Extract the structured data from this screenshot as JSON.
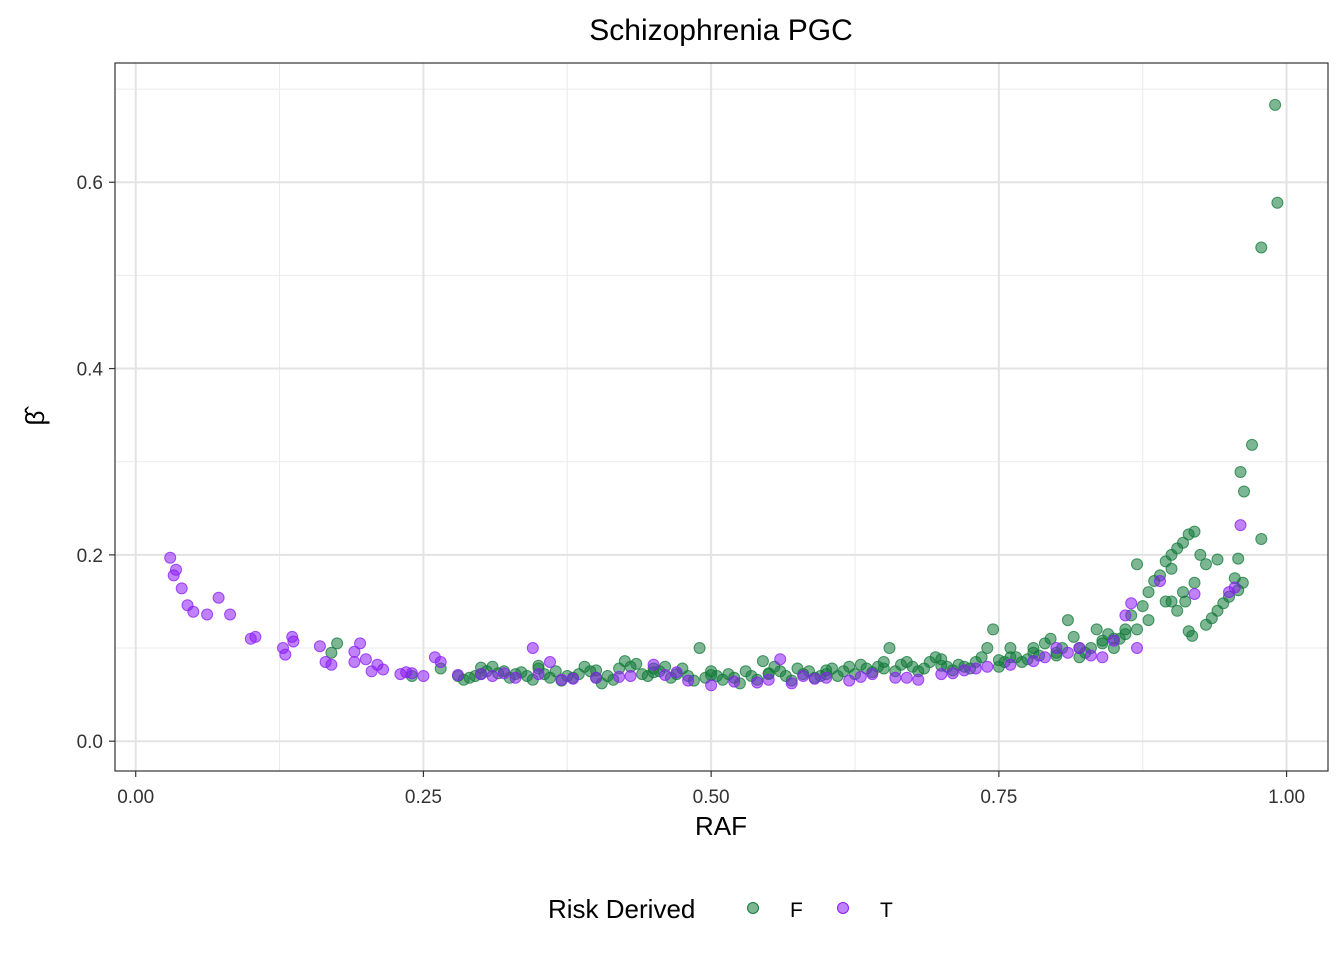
{
  "chart_data": {
    "type": "scatter",
    "title": "Schizophrenia PGC",
    "xlabel": "RAF",
    "ylabel": "β̂",
    "xlim": [
      -0.018,
      1.036
    ],
    "ylim": [
      -0.032,
      0.728
    ],
    "x_ticks": [
      0,
      0.25,
      0.5,
      0.75,
      1
    ],
    "x_tick_labels": [
      "0.00",
      "0.25",
      "0.50",
      "0.75",
      "1.00"
    ],
    "y_ticks": [
      0,
      0.2,
      0.4,
      0.6
    ],
    "y_tick_labels": [
      "0.0",
      "0.2",
      "0.4",
      "0.6"
    ],
    "grid": true,
    "legend": {
      "title": "Risk Derived",
      "position": "bottom",
      "entries": [
        {
          "label": "F",
          "color": "#137a3a"
        },
        {
          "label": "T",
          "color": "#8a1cf5"
        }
      ]
    },
    "series": [
      {
        "name": "F",
        "color": "#137a3a",
        "points": [
          [
            0.99,
            0.683
          ],
          [
            0.992,
            0.578
          ],
          [
            0.978,
            0.53
          ],
          [
            0.97,
            0.318
          ],
          [
            0.96,
            0.289
          ],
          [
            0.963,
            0.268
          ],
          [
            0.978,
            0.217
          ],
          [
            0.958,
            0.196
          ],
          [
            0.962,
            0.17
          ],
          [
            0.955,
            0.175
          ],
          [
            0.958,
            0.162
          ],
          [
            0.95,
            0.155
          ],
          [
            0.945,
            0.148
          ],
          [
            0.94,
            0.14
          ],
          [
            0.935,
            0.132
          ],
          [
            0.93,
            0.125
          ],
          [
            0.925,
            0.2
          ],
          [
            0.92,
            0.225
          ],
          [
            0.915,
            0.222
          ],
          [
            0.91,
            0.213
          ],
          [
            0.905,
            0.207
          ],
          [
            0.9,
            0.2
          ],
          [
            0.895,
            0.193
          ],
          [
            0.89,
            0.178
          ],
          [
            0.885,
            0.172
          ],
          [
            0.9,
            0.185
          ],
          [
            0.91,
            0.16
          ],
          [
            0.92,
            0.17
          ],
          [
            0.93,
            0.19
          ],
          [
            0.94,
            0.195
          ],
          [
            0.912,
            0.15
          ],
          [
            0.915,
            0.118
          ],
          [
            0.918,
            0.113
          ],
          [
            0.905,
            0.14
          ],
          [
            0.895,
            0.15
          ],
          [
            0.88,
            0.16
          ],
          [
            0.875,
            0.145
          ],
          [
            0.87,
            0.19
          ],
          [
            0.865,
            0.135
          ],
          [
            0.86,
            0.12
          ],
          [
            0.855,
            0.11
          ],
          [
            0.85,
            0.1
          ],
          [
            0.845,
            0.115
          ],
          [
            0.84,
            0.105
          ],
          [
            0.835,
            0.12
          ],
          [
            0.83,
            0.1
          ],
          [
            0.825,
            0.095
          ],
          [
            0.82,
            0.09
          ],
          [
            0.815,
            0.112
          ],
          [
            0.81,
            0.13
          ],
          [
            0.805,
            0.1
          ],
          [
            0.8,
            0.095
          ],
          [
            0.795,
            0.11
          ],
          [
            0.79,
            0.105
          ],
          [
            0.785,
            0.092
          ],
          [
            0.78,
            0.1
          ],
          [
            0.775,
            0.088
          ],
          [
            0.77,
            0.085
          ],
          [
            0.765,
            0.09
          ],
          [
            0.76,
            0.1
          ],
          [
            0.755,
            0.085
          ],
          [
            0.75,
            0.08
          ],
          [
            0.745,
            0.12
          ],
          [
            0.74,
            0.1
          ],
          [
            0.735,
            0.09
          ],
          [
            0.73,
            0.085
          ],
          [
            0.725,
            0.078
          ],
          [
            0.72,
            0.08
          ],
          [
            0.715,
            0.082
          ],
          [
            0.71,
            0.076
          ],
          [
            0.705,
            0.08
          ],
          [
            0.7,
            0.088
          ],
          [
            0.695,
            0.09
          ],
          [
            0.69,
            0.085
          ],
          [
            0.685,
            0.078
          ],
          [
            0.68,
            0.075
          ],
          [
            0.675,
            0.08
          ],
          [
            0.67,
            0.085
          ],
          [
            0.665,
            0.082
          ],
          [
            0.66,
            0.075
          ],
          [
            0.655,
            0.1
          ],
          [
            0.65,
            0.085
          ],
          [
            0.645,
            0.08
          ],
          [
            0.64,
            0.074
          ],
          [
            0.635,
            0.078
          ],
          [
            0.63,
            0.082
          ],
          [
            0.625,
            0.072
          ],
          [
            0.62,
            0.08
          ],
          [
            0.615,
            0.075
          ],
          [
            0.61,
            0.07
          ],
          [
            0.605,
            0.078
          ],
          [
            0.6,
            0.072
          ],
          [
            0.595,
            0.07
          ],
          [
            0.59,
            0.068
          ],
          [
            0.585,
            0.075
          ],
          [
            0.58,
            0.072
          ],
          [
            0.575,
            0.078
          ],
          [
            0.57,
            0.065
          ],
          [
            0.565,
            0.07
          ],
          [
            0.56,
            0.075
          ],
          [
            0.555,
            0.08
          ],
          [
            0.55,
            0.072
          ],
          [
            0.545,
            0.086
          ],
          [
            0.54,
            0.066
          ],
          [
            0.535,
            0.07
          ],
          [
            0.53,
            0.075
          ],
          [
            0.525,
            0.062
          ],
          [
            0.52,
            0.068
          ],
          [
            0.515,
            0.072
          ],
          [
            0.51,
            0.066
          ],
          [
            0.505,
            0.07
          ],
          [
            0.5,
            0.075
          ],
          [
            0.495,
            0.068
          ],
          [
            0.49,
            0.1
          ],
          [
            0.485,
            0.065
          ],
          [
            0.48,
            0.07
          ],
          [
            0.475,
            0.078
          ],
          [
            0.47,
            0.072
          ],
          [
            0.465,
            0.068
          ],
          [
            0.46,
            0.08
          ],
          [
            0.455,
            0.075
          ],
          [
            0.45,
            0.078
          ],
          [
            0.445,
            0.07
          ],
          [
            0.44,
            0.072
          ],
          [
            0.435,
            0.083
          ],
          [
            0.43,
            0.08
          ],
          [
            0.425,
            0.086
          ],
          [
            0.42,
            0.078
          ],
          [
            0.415,
            0.066
          ],
          [
            0.41,
            0.07
          ],
          [
            0.405,
            0.062
          ],
          [
            0.4,
            0.068
          ],
          [
            0.395,
            0.075
          ],
          [
            0.39,
            0.08
          ],
          [
            0.385,
            0.072
          ],
          [
            0.38,
            0.068
          ],
          [
            0.375,
            0.07
          ],
          [
            0.37,
            0.065
          ],
          [
            0.365,
            0.075
          ],
          [
            0.36,
            0.068
          ],
          [
            0.355,
            0.072
          ],
          [
            0.35,
            0.078
          ],
          [
            0.345,
            0.066
          ],
          [
            0.34,
            0.07
          ],
          [
            0.335,
            0.074
          ],
          [
            0.33,
            0.072
          ],
          [
            0.325,
            0.068
          ],
          [
            0.32,
            0.075
          ],
          [
            0.315,
            0.073
          ],
          [
            0.31,
            0.08
          ],
          [
            0.305,
            0.075
          ],
          [
            0.3,
            0.072
          ],
          [
            0.295,
            0.07
          ],
          [
            0.29,
            0.068
          ],
          [
            0.285,
            0.066
          ],
          [
            0.28,
            0.07
          ],
          [
            0.265,
            0.078
          ],
          [
            0.24,
            0.07
          ],
          [
            0.175,
            0.105
          ],
          [
            0.17,
            0.095
          ],
          [
            0.3,
            0.079
          ],
          [
            0.35,
            0.081
          ],
          [
            0.4,
            0.076
          ],
          [
            0.45,
            0.074
          ],
          [
            0.5,
            0.071
          ],
          [
            0.55,
            0.073
          ],
          [
            0.6,
            0.076
          ],
          [
            0.65,
            0.078
          ],
          [
            0.7,
            0.081
          ],
          [
            0.75,
            0.087
          ],
          [
            0.8,
            0.092
          ],
          [
            0.85,
            0.11
          ],
          [
            0.88,
            0.13
          ],
          [
            0.9,
            0.15
          ],
          [
            0.76,
            0.09
          ],
          [
            0.78,
            0.095
          ],
          [
            0.82,
            0.1
          ],
          [
            0.84,
            0.108
          ],
          [
            0.86,
            0.115
          ],
          [
            0.87,
            0.12
          ]
        ]
      },
      {
        "name": "T",
        "color": "#8a1cf5",
        "points": [
          [
            0.03,
            0.197
          ],
          [
            0.033,
            0.178
          ],
          [
            0.035,
            0.184
          ],
          [
            0.04,
            0.164
          ],
          [
            0.045,
            0.146
          ],
          [
            0.05,
            0.139
          ],
          [
            0.062,
            0.136
          ],
          [
            0.072,
            0.154
          ],
          [
            0.082,
            0.136
          ],
          [
            0.1,
            0.11
          ],
          [
            0.104,
            0.112
          ],
          [
            0.128,
            0.1
          ],
          [
            0.13,
            0.093
          ],
          [
            0.136,
            0.112
          ],
          [
            0.137,
            0.107
          ],
          [
            0.16,
            0.102
          ],
          [
            0.165,
            0.085
          ],
          [
            0.17,
            0.082
          ],
          [
            0.19,
            0.085
          ],
          [
            0.195,
            0.105
          ],
          [
            0.2,
            0.088
          ],
          [
            0.205,
            0.075
          ],
          [
            0.215,
            0.077
          ],
          [
            0.23,
            0.072
          ],
          [
            0.24,
            0.073
          ],
          [
            0.25,
            0.07
          ],
          [
            0.26,
            0.09
          ],
          [
            0.265,
            0.085
          ],
          [
            0.3,
            0.072
          ],
          [
            0.31,
            0.07
          ],
          [
            0.33,
            0.068
          ],
          [
            0.345,
            0.1
          ],
          [
            0.35,
            0.072
          ],
          [
            0.36,
            0.085
          ],
          [
            0.37,
            0.066
          ],
          [
            0.4,
            0.068
          ],
          [
            0.43,
            0.07
          ],
          [
            0.45,
            0.082
          ],
          [
            0.47,
            0.074
          ],
          [
            0.5,
            0.06
          ],
          [
            0.52,
            0.064
          ],
          [
            0.55,
            0.066
          ],
          [
            0.56,
            0.088
          ],
          [
            0.57,
            0.062
          ],
          [
            0.58,
            0.07
          ],
          [
            0.6,
            0.068
          ],
          [
            0.62,
            0.065
          ],
          [
            0.64,
            0.072
          ],
          [
            0.66,
            0.068
          ],
          [
            0.68,
            0.066
          ],
          [
            0.7,
            0.072
          ],
          [
            0.72,
            0.076
          ],
          [
            0.74,
            0.08
          ],
          [
            0.76,
            0.082
          ],
          [
            0.78,
            0.086
          ],
          [
            0.79,
            0.09
          ],
          [
            0.8,
            0.1
          ],
          [
            0.81,
            0.095
          ],
          [
            0.82,
            0.1
          ],
          [
            0.83,
            0.092
          ],
          [
            0.84,
            0.09
          ],
          [
            0.85,
            0.108
          ],
          [
            0.86,
            0.135
          ],
          [
            0.865,
            0.148
          ],
          [
            0.87,
            0.1
          ],
          [
            0.89,
            0.172
          ],
          [
            0.92,
            0.158
          ],
          [
            0.95,
            0.16
          ],
          [
            0.96,
            0.232
          ],
          [
            0.955,
            0.165
          ],
          [
            0.19,
            0.096
          ],
          [
            0.21,
            0.082
          ],
          [
            0.235,
            0.074
          ],
          [
            0.28,
            0.071
          ],
          [
            0.32,
            0.073
          ],
          [
            0.38,
            0.067
          ],
          [
            0.42,
            0.069
          ],
          [
            0.46,
            0.071
          ],
          [
            0.48,
            0.065
          ],
          [
            0.54,
            0.063
          ],
          [
            0.59,
            0.067
          ],
          [
            0.63,
            0.069
          ],
          [
            0.67,
            0.068
          ],
          [
            0.71,
            0.073
          ],
          [
            0.73,
            0.078
          ]
        ]
      }
    ]
  }
}
